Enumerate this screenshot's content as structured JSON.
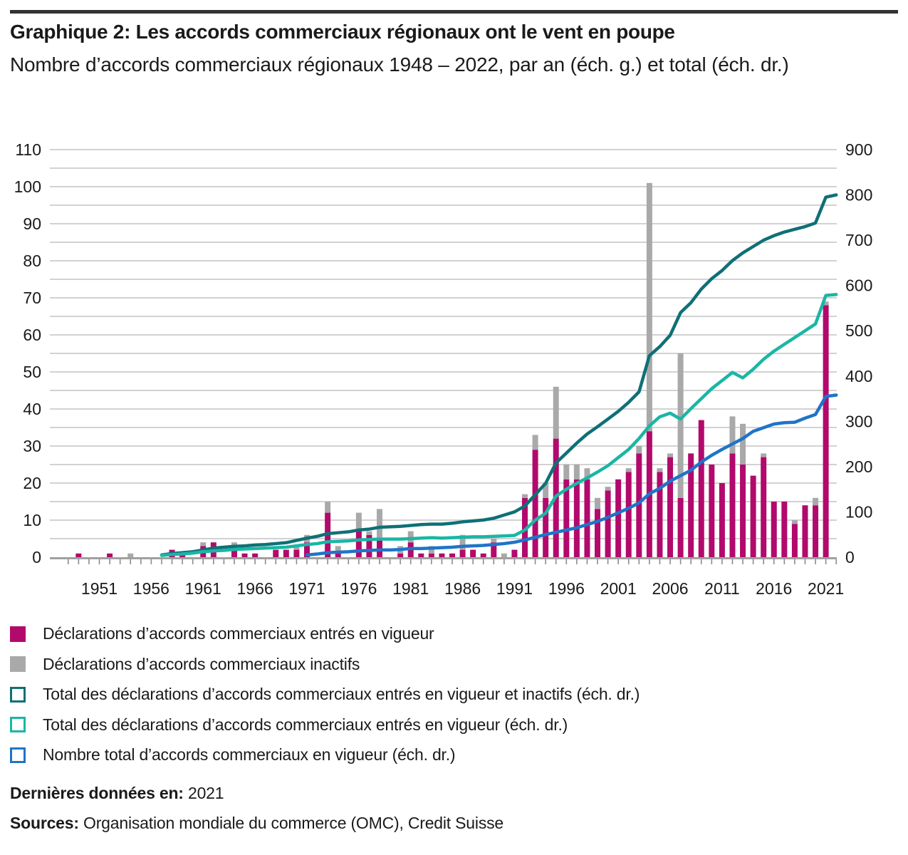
{
  "header": {
    "title": "Graphique 2: Les accords commerciaux régionaux ont le vent en poupe",
    "subtitle": "Nombre d’accords commerciaux régionaux 1948 – 2022, par an (éch. g.) et total (éch. dr.)"
  },
  "colors": {
    "in_force_bar": "#b2096c",
    "inactive_bar": "#a9a9a9",
    "total_all_line": "#0f7076",
    "total_in_force_line": "#1ab6a5",
    "agreements_in_force_line": "#1f74c8",
    "gridline": "#c4c4c4",
    "axis_line": "#a0a0a0",
    "tick": "#8c8c8c",
    "text": "#1a1a1a",
    "top_rule": "#333333"
  },
  "chart_data": {
    "type": "bar",
    "subtype": "stacked-bars-with-cumulative-lines",
    "x_start_year": 1948,
    "x_end_year": 2022,
    "x_tick_labels": [
      1951,
      1956,
      1961,
      1966,
      1971,
      1976,
      1981,
      1986,
      1991,
      1996,
      2001,
      2006,
      2011,
      2016,
      2021
    ],
    "left_axis": {
      "min": 0,
      "max": 110,
      "tick_step": 10,
      "gridline_step": 5,
      "labels": [
        0,
        10,
        20,
        30,
        40,
        50,
        60,
        70,
        80,
        90,
        100,
        110
      ]
    },
    "right_axis": {
      "min": 0,
      "max": 900,
      "tick_step": 100,
      "labels": [
        0,
        100,
        200,
        300,
        400,
        500,
        600,
        700,
        800,
        900
      ]
    },
    "grid": "horizontal-only",
    "years": [
      1948,
      1949,
      1950,
      1951,
      1952,
      1953,
      1954,
      1955,
      1956,
      1957,
      1958,
      1959,
      1960,
      1961,
      1962,
      1963,
      1964,
      1965,
      1966,
      1967,
      1968,
      1969,
      1970,
      1971,
      1972,
      1973,
      1974,
      1975,
      1976,
      1977,
      1978,
      1979,
      1980,
      1981,
      1982,
      1983,
      1984,
      1985,
      1986,
      1987,
      1988,
      1989,
      1990,
      1991,
      1992,
      1993,
      1994,
      1995,
      1996,
      1997,
      1998,
      1999,
      2000,
      2001,
      2002,
      2003,
      2004,
      2005,
      2006,
      2007,
      2008,
      2009,
      2010,
      2011,
      2012,
      2013,
      2014,
      2015,
      2016,
      2017,
      2018,
      2019,
      2020,
      2021,
      2022
    ],
    "bars": [
      {
        "name": "Déclarations d’accords commerciaux entrés en vigueur",
        "axis": "left",
        "color_key": "in_force_bar",
        "values": [
          0,
          1,
          0,
          0,
          1,
          0,
          0,
          0,
          0,
          0,
          2,
          1,
          0,
          3,
          4,
          0,
          3,
          1,
          1,
          0,
          2,
          2,
          2,
          4,
          0,
          12,
          1,
          0,
          7,
          6,
          5,
          0,
          1,
          4,
          1,
          1,
          1,
          1,
          2,
          2,
          1,
          4,
          0,
          2,
          16,
          29,
          16,
          32,
          21,
          21,
          21,
          13,
          18,
          21,
          23,
          28,
          34,
          23,
          27,
          16,
          28,
          37,
          25,
          20,
          28,
          25,
          22,
          27,
          15,
          15,
          9,
          14,
          14,
          68,
          0
        ]
      },
      {
        "name": "Déclarations d’accords commerciaux inactifs",
        "axis": "left",
        "color_key": "inactive_bar",
        "values": [
          0,
          0,
          0,
          0,
          0,
          0,
          1,
          0,
          0,
          0,
          0,
          0,
          0,
          1,
          0,
          0,
          1,
          0,
          0,
          0,
          0,
          0,
          1,
          2,
          0,
          3,
          2,
          0,
          5,
          1,
          8,
          0,
          2,
          3,
          0,
          2,
          0,
          0,
          4,
          0,
          0,
          1,
          1,
          0,
          1,
          4,
          4,
          14,
          4,
          4,
          3,
          3,
          1,
          0,
          1,
          2,
          67,
          1,
          1,
          39,
          0,
          0,
          0,
          0,
          10,
          11,
          0,
          1,
          0,
          0,
          1,
          0,
          2,
          1,
          0
        ]
      }
    ],
    "series": [
      {
        "name": "Total des déclarations d’accords commerciaux entrés en vigueur et inactifs (éch. dr.)",
        "axis": "right",
        "color_key": "total_all_line",
        "values": [
          null,
          null,
          null,
          null,
          null,
          null,
          null,
          null,
          null,
          5,
          8,
          10,
          12,
          16,
          20,
          22,
          24,
          25,
          27,
          28,
          30,
          32,
          37,
          42,
          46,
          52,
          54,
          56,
          60,
          62,
          66,
          67,
          68,
          70,
          72,
          73,
          73,
          75,
          78,
          80,
          82,
          86,
          93,
          100,
          113,
          138,
          163,
          208,
          230,
          252,
          272,
          288,
          305,
          322,
          342,
          365,
          445,
          465,
          490,
          540,
          562,
          592,
          615,
          633,
          655,
          672,
          686,
          700,
          710,
          718,
          724,
          730,
          738,
          795,
          800
        ]
      },
      {
        "name": "Total des déclarations d’accords commerciaux entrés en vigueur (éch. dr.)",
        "axis": "right",
        "color_key": "total_in_force_line",
        "values": [
          null,
          null,
          null,
          null,
          null,
          null,
          null,
          null,
          null,
          4,
          6,
          7,
          9,
          12,
          14,
          15,
          17,
          18,
          19,
          20,
          21,
          22,
          25,
          28,
          30,
          34,
          35,
          36,
          38,
          39,
          40,
          40,
          40,
          41,
          42,
          43,
          42,
          43,
          44,
          45,
          45,
          46,
          47,
          48,
          60,
          82,
          97,
          135,
          150,
          163,
          175,
          188,
          202,
          220,
          238,
          262,
          290,
          310,
          318,
          305,
          328,
          350,
          372,
          390,
          408,
          396,
          415,
          437,
          455,
          470,
          485,
          500,
          515,
          578,
          580
        ]
      },
      {
        "name": "Nombre total d’accords commerciaux en vigueur (éch. dr.)",
        "axis": "right",
        "color_key": "agreements_in_force_line",
        "values": [
          null,
          null,
          null,
          null,
          null,
          null,
          null,
          null,
          null,
          null,
          null,
          null,
          null,
          null,
          null,
          null,
          null,
          null,
          null,
          null,
          null,
          null,
          null,
          5,
          7,
          10,
          11,
          12,
          14,
          15,
          16,
          16,
          17,
          19,
          19,
          20,
          21,
          22,
          24,
          25,
          26,
          28,
          30,
          33,
          38,
          44,
          50,
          55,
          60,
          65,
          72,
          79,
          88,
          98,
          108,
          120,
          140,
          152,
          168,
          180,
          192,
          210,
          225,
          238,
          250,
          262,
          278,
          286,
          294,
          297,
          298,
          307,
          315,
          355,
          358
        ]
      }
    ],
    "title": "Graphique 2: Les accords commerciaux régionaux ont le vent en poupe",
    "xlabel": "",
    "ylabel_left": "",
    "ylabel_right": "",
    "legend_position": "below"
  },
  "legend": {
    "items": [
      {
        "label": "Déclarations d’accords commerciaux entrés en vigueur",
        "marker": "filled-square",
        "color_key": "in_force_bar"
      },
      {
        "label": "Déclarations d’accords commerciaux inactifs",
        "marker": "filled-square",
        "color_key": "inactive_bar"
      },
      {
        "label": "Total des déclarations d’accords commerciaux entrés en vigueur et inactifs (éch. dr.)",
        "marker": "outlined-square",
        "color_key": "total_all_line"
      },
      {
        "label": "Total des déclarations d’accords commerciaux entrés en vigueur (éch. dr.)",
        "marker": "outlined-square",
        "color_key": "total_in_force_line"
      },
      {
        "label": "Nombre total d’accords commerciaux en vigueur (éch. dr.)",
        "marker": "outlined-square",
        "color_key": "agreements_in_force_line"
      }
    ]
  },
  "footer": {
    "last_data_label": "Dernières données en:",
    "last_data_value": "2021",
    "sources_label": "Sources:",
    "sources_value": "Organisation mondiale du commerce (OMC), Credit Suisse"
  }
}
